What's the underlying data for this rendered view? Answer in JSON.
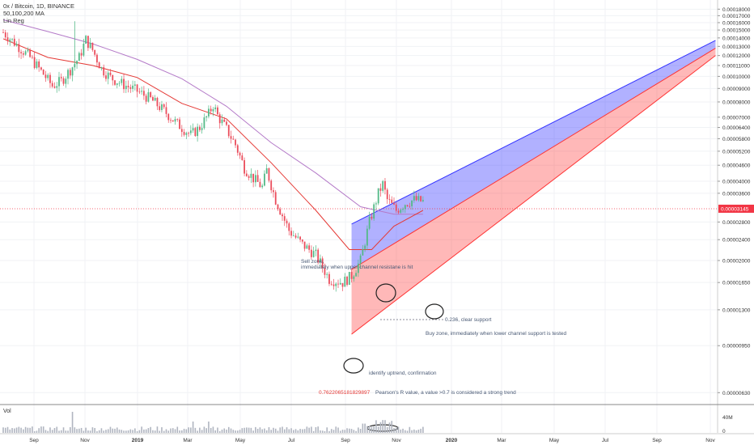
{
  "header": {
    "symbol_line": "0x / Bitcoin, 1D, BINANCE",
    "ma_line": "50,100,200 MA",
    "reg_line": "Lin Reg"
  },
  "volume_label": "Vol",
  "price_tag": "0.00003145",
  "colors": {
    "candle_up": "#53b987",
    "candle_down": "#eb4d5c",
    "ma_fast": "#e53935",
    "ma_slow": "#b47ac8",
    "upper_channel": "#3333ff",
    "lower_channel": "#ff3333",
    "price_line": "#f23645",
    "annotation_text": "#4a5a75",
    "pearson": "#e53935",
    "volume": "#b0b5c0"
  },
  "annotations": {
    "sell_zone_line1": "Sell zone,",
    "sell_zone_line2": "immediately when upper channel resistane is hit",
    "clear_support": "0.236, clear support",
    "buy_zone": "Buy zone, immediately when lower channel support is tested",
    "identify_uptrend": "identify uptrend, confirmation",
    "pearson_value": "0.7622065181829897",
    "pearson_text": "Pearson's R value, a value >0.7 is considered a strong trend"
  },
  "chart_data": {
    "type": "line",
    "price_axis": {
      "ticks": [
        "0.00018000",
        "0.00017000",
        "0.00016000",
        "0.00015000",
        "0.00014000",
        "0.00013000",
        "0.00012000",
        "0.00011000",
        "0.00010000",
        "0.00009000",
        "0.00008000",
        "0.00007000",
        "0.00006400",
        "0.00005800",
        "0.00005200",
        "0.00004600",
        "0.00004000",
        "0.00003600",
        "0.00002800",
        "0.00002400",
        "0.00002000",
        "0.00001650",
        "0.00001300",
        "0.00000950",
        "0.00000630"
      ]
    },
    "volume_axis": {
      "ticks": [
        "40M",
        "0"
      ]
    },
    "time_axis": {
      "ticks": [
        "Sep",
        "Nov",
        "2019",
        "Mar",
        "May",
        "Jul",
        "Sep",
        "Nov",
        "2020",
        "Mar",
        "May",
        "Jul",
        "Sep",
        "Nov"
      ]
    },
    "current_price": 3.145e-05,
    "price_path": [
      [
        0,
        0.000147
      ],
      [
        6,
        0.000132
      ],
      [
        12,
        0.000118
      ],
      [
        18,
        0.000102
      ],
      [
        22,
        9.2e-05
      ],
      [
        26,
        9.6e-05
      ],
      [
        30,
        0.000106
      ],
      [
        34,
        0.000118
      ],
      [
        37,
        0.000138
      ],
      [
        40,
        0.000126
      ],
      [
        44,
        0.000107
      ],
      [
        48,
        9.9e-05
      ],
      [
        54,
        9.3e-05
      ],
      [
        60,
        8.8e-05
      ],
      [
        66,
        8.2e-05
      ],
      [
        72,
        7.4e-05
      ],
      [
        78,
        6.6e-05
      ],
      [
        84,
        6e-05
      ],
      [
        88,
        6.4e-05
      ],
      [
        92,
        7.2e-05
      ],
      [
        94,
        7.8e-05
      ],
      [
        96,
        7.1e-05
      ],
      [
        100,
        6.3e-05
      ],
      [
        104,
        5.5e-05
      ],
      [
        108,
        4.5e-05
      ],
      [
        112,
        4.1e-05
      ],
      [
        116,
        3.8e-05
      ],
      [
        118,
        4.4e-05
      ],
      [
        122,
        3.4e-05
      ],
      [
        128,
        2.6e-05
      ],
      [
        134,
        2.3e-05
      ],
      [
        140,
        2.1e-05
      ],
      [
        146,
        1.7e-05
      ],
      [
        152,
        1.65e-05
      ],
      [
        156,
        1.75e-05
      ],
      [
        160,
        2e-05
      ],
      [
        164,
        2.8e-05
      ],
      [
        168,
        3.6e-05
      ],
      [
        170,
        3.9e-05
      ],
      [
        172,
        3.4e-05
      ],
      [
        176,
        3.1e-05
      ],
      [
        180,
        3.3e-05
      ],
      [
        184,
        3.4e-05
      ],
      [
        188,
        3.35e-05
      ]
    ],
    "ma_fast_path": [
      [
        0,
        0.000139
      ],
      [
        20,
        0.000118
      ],
      [
        40,
        0.00011
      ],
      [
        60,
        9.9e-05
      ],
      [
        80,
        7.9e-05
      ],
      [
        100,
        6.9e-05
      ],
      [
        120,
        4.7e-05
      ],
      [
        140,
        3.1e-05
      ],
      [
        155,
        2.2e-05
      ],
      [
        165,
        2.2e-05
      ],
      [
        175,
        2.7e-05
      ],
      [
        188,
        3.1e-05
      ]
    ],
    "ma_slow_path": [
      [
        0,
        0.000164
      ],
      [
        20,
        0.000148
      ],
      [
        40,
        0.000133
      ],
      [
        60,
        0.000116
      ],
      [
        80,
        9.8e-05
      ],
      [
        100,
        7.7e-05
      ],
      [
        120,
        5.6e-05
      ],
      [
        140,
        4.3e-05
      ],
      [
        160,
        3.2e-05
      ],
      [
        175,
        3e-05
      ],
      [
        188,
        3e-05
      ]
    ],
    "regression_channel": {
      "start_day": 156,
      "end_day": 319,
      "upper_start": 2.75e-05,
      "upper_end": 0.000137,
      "mid_start": 1.85e-05,
      "mid_end": 0.000128,
      "lower_start": 1.05e-05,
      "lower_end": 0.00012
    }
  }
}
